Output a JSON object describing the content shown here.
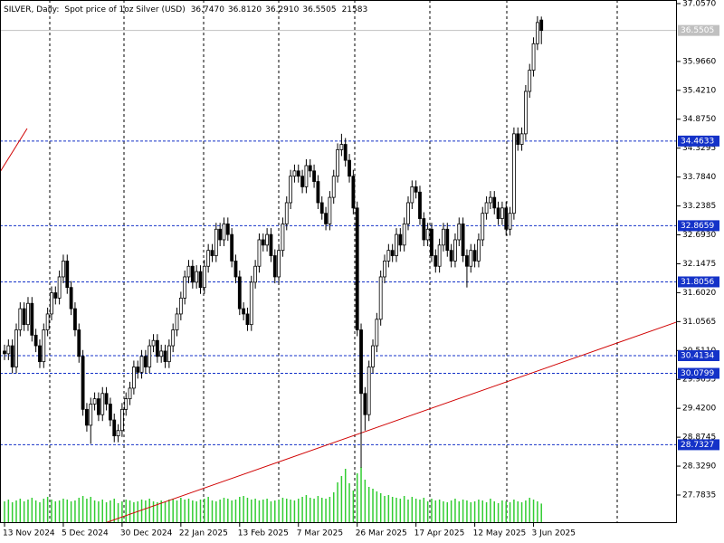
{
  "chart_data": {
    "type": "candlestick",
    "header": {
      "symbol": "SILVER, Daily:",
      "description": "Spot price of 1oz Silver (USD)",
      "ohlc_labels": [
        "36.7470",
        "36.8120",
        "36.2910",
        "36.5505"
      ]
    },
    "categories": [
      "13 Nov 2024",
      null,
      null,
      null,
      null,
      null,
      null,
      null,
      null,
      null,
      null,
      null,
      null,
      null,
      null,
      "5 Dec 2024",
      null,
      null,
      null,
      null,
      null,
      null,
      null,
      null,
      null,
      null,
      null,
      null,
      null,
      null,
      "30 Dec 2024",
      null,
      null,
      null,
      null,
      null,
      null,
      null,
      null,
      null,
      null,
      null,
      null,
      null,
      null,
      "22 Jan 2025",
      null,
      null,
      null,
      null,
      null,
      null,
      null,
      null,
      null,
      null,
      null,
      null,
      null,
      null,
      "13 Feb 2025",
      null,
      null,
      null,
      null,
      null,
      null,
      null,
      null,
      null,
      null,
      null,
      null,
      null,
      null,
      "7 Mar 2025",
      null,
      null,
      null,
      null,
      null,
      null,
      null,
      null,
      null,
      null,
      null,
      null,
      null,
      null,
      "26 Mar 2025",
      null,
      null,
      null,
      null,
      null,
      null,
      null,
      null,
      null,
      null,
      null,
      null,
      null,
      null,
      "17 Apr 2025",
      null,
      null,
      null,
      null,
      null,
      null,
      null,
      null,
      null,
      null,
      null,
      null,
      null,
      null,
      "12 May 2025",
      null,
      null,
      null,
      null,
      null,
      null,
      null,
      null,
      null,
      null,
      null,
      null,
      null,
      null,
      "3 Jun 2025",
      null,
      null
    ],
    "open": [
      30.5,
      30.45,
      30.6,
      30.2,
      30.9,
      31.3,
      31.0,
      31.4,
      30.8,
      30.6,
      30.3,
      30.9,
      31.2,
      31.6,
      31.5,
      31.9,
      32.2,
      31.7,
      31.3,
      30.9,
      30.4,
      29.4,
      29.1,
      29.5,
      29.6,
      29.3,
      29.7,
      29.5,
      29.2,
      28.9,
      29.0,
      29.4,
      29.6,
      29.8,
      30.2,
      30.1,
      30.4,
      30.2,
      30.6,
      30.7,
      30.4,
      30.5,
      30.3,
      30.6,
      30.9,
      31.2,
      31.5,
      31.9,
      32.1,
      31.8,
      32.0,
      31.7,
      32.1,
      32.4,
      32.3,
      32.8,
      32.6,
      32.9,
      32.7,
      32.2,
      31.9,
      31.3,
      31.2,
      31.0,
      31.8,
      32.1,
      32.6,
      32.5,
      32.7,
      32.3,
      31.9,
      32.4,
      32.9,
      33.3,
      33.8,
      33.9,
      33.8,
      33.6,
      34.0,
      33.9,
      33.7,
      33.3,
      33.1,
      32.9,
      33.4,
      33.8,
      34.3,
      34.4,
      34.1,
      33.8,
      33.2,
      30.9,
      29.7,
      29.3,
      30.2,
      30.6,
      31.1,
      31.9,
      32.2,
      32.4,
      32.3,
      32.7,
      32.5,
      32.9,
      33.3,
      33.6,
      33.5,
      33.0,
      32.6,
      32.8,
      32.3,
      32.1,
      32.5,
      32.8,
      32.4,
      32.2,
      32.6,
      32.9,
      32.3,
      32.1,
      32.4,
      32.2,
      32.6,
      33.1,
      33.3,
      33.4,
      33.2,
      33.0,
      33.2,
      32.8,
      33.1,
      34.6,
      34.4,
      34.6,
      35.4,
      35.8,
      36.3,
      36.747
    ],
    "high": [
      30.62,
      30.72,
      30.72,
      31.02,
      31.42,
      31.42,
      31.52,
      31.52,
      30.92,
      30.72,
      31.02,
      31.32,
      31.72,
      31.72,
      32.02,
      32.32,
      32.32,
      31.82,
      31.42,
      31.02,
      30.52,
      29.52,
      29.62,
      29.72,
      29.72,
      29.82,
      29.82,
      29.62,
      29.32,
      29.12,
      29.52,
      29.72,
      29.92,
      30.32,
      30.32,
      30.52,
      30.52,
      30.72,
      30.82,
      30.82,
      30.62,
      30.62,
      30.72,
      31.02,
      31.32,
      31.62,
      32.02,
      32.22,
      32.22,
      32.12,
      32.12,
      32.22,
      32.52,
      32.52,
      32.92,
      32.92,
      33.02,
      33.02,
      32.82,
      32.32,
      32.02,
      31.42,
      31.32,
      31.92,
      32.22,
      32.72,
      32.72,
      32.82,
      32.82,
      32.42,
      32.52,
      33.02,
      33.42,
      33.92,
      34.02,
      34.02,
      33.92,
      34.12,
      34.12,
      34.02,
      33.82,
      33.42,
      33.22,
      33.52,
      33.92,
      34.42,
      34.6,
      34.52,
      34.22,
      33.92,
      33.32,
      31.02,
      29.82,
      30.32,
      30.72,
      31.22,
      32.02,
      32.32,
      32.52,
      32.52,
      32.82,
      32.82,
      33.02,
      33.42,
      33.72,
      33.72,
      33.62,
      33.12,
      32.92,
      32.92,
      32.42,
      32.62,
      32.92,
      32.92,
      32.52,
      32.72,
      33.02,
      33.02,
      32.42,
      32.52,
      32.52,
      32.72,
      33.22,
      33.42,
      33.52,
      33.52,
      33.32,
      33.32,
      33.32,
      33.22,
      34.72,
      34.72,
      34.72,
      35.52,
      35.92,
      36.42,
      36.82,
      36.812
    ],
    "low": [
      30.33,
      30.33,
      30.08,
      30.08,
      30.78,
      30.88,
      30.88,
      30.68,
      30.48,
      30.18,
      30.18,
      30.78,
      31.08,
      31.38,
      31.38,
      31.78,
      31.58,
      31.18,
      30.78,
      30.28,
      29.28,
      28.98,
      28.75,
      29.38,
      29.18,
      29.18,
      29.38,
      29.08,
      28.78,
      28.78,
      28.88,
      29.28,
      29.48,
      29.68,
      29.98,
      29.98,
      30.08,
      30.08,
      30.48,
      30.28,
      30.28,
      30.18,
      30.18,
      30.48,
      30.78,
      31.08,
      31.38,
      31.78,
      31.68,
      31.68,
      31.58,
      31.58,
      31.98,
      32.18,
      32.18,
      32.48,
      32.48,
      32.58,
      32.08,
      31.78,
      31.18,
      31.08,
      30.88,
      30.88,
      31.68,
      31.98,
      32.38,
      32.38,
      32.18,
      31.78,
      31.78,
      32.28,
      32.78,
      33.18,
      33.68,
      33.68,
      33.48,
      33.48,
      33.78,
      33.58,
      33.18,
      32.98,
      32.78,
      32.78,
      33.28,
      33.68,
      34.18,
      33.98,
      33.68,
      33.08,
      30.78,
      28.3,
      29.0,
      29.18,
      30.08,
      30.48,
      30.98,
      31.78,
      32.08,
      32.18,
      32.18,
      32.38,
      32.38,
      32.78,
      33.18,
      33.38,
      32.88,
      32.48,
      32.48,
      32.18,
      31.98,
      31.98,
      32.38,
      32.28,
      32.08,
      32.08,
      32.48,
      32.18,
      31.7,
      31.98,
      32.08,
      32.08,
      32.48,
      32.98,
      33.18,
      33.08,
      32.88,
      32.88,
      32.68,
      32.68,
      32.98,
      34.28,
      34.28,
      34.48,
      35.28,
      35.68,
      36.18,
      36.291
    ],
    "close": [
      30.45,
      30.6,
      30.2,
      30.9,
      31.3,
      31.0,
      31.4,
      30.8,
      30.6,
      30.3,
      30.9,
      31.2,
      31.6,
      31.5,
      31.9,
      32.2,
      31.7,
      31.3,
      30.9,
      30.4,
      29.4,
      29.1,
      29.5,
      29.6,
      29.3,
      29.7,
      29.5,
      29.2,
      28.9,
      29.0,
      29.4,
      29.6,
      29.8,
      30.2,
      30.1,
      30.4,
      30.2,
      30.6,
      30.7,
      30.4,
      30.5,
      30.3,
      30.6,
      30.9,
      31.2,
      31.5,
      31.9,
      32.1,
      31.8,
      32.0,
      31.7,
      32.1,
      32.4,
      32.3,
      32.8,
      32.6,
      32.9,
      32.7,
      32.2,
      31.9,
      31.3,
      31.2,
      31.0,
      31.8,
      32.1,
      32.6,
      32.5,
      32.7,
      32.3,
      31.9,
      32.4,
      32.9,
      33.3,
      33.8,
      33.9,
      33.8,
      33.6,
      34.0,
      33.9,
      33.7,
      33.3,
      33.1,
      32.9,
      33.4,
      33.8,
      34.3,
      34.4,
      34.1,
      33.8,
      33.2,
      30.9,
      29.7,
      29.3,
      30.2,
      30.6,
      31.1,
      31.9,
      32.2,
      32.4,
      32.3,
      32.7,
      32.5,
      32.9,
      33.3,
      33.6,
      33.5,
      33.0,
      32.6,
      32.8,
      32.3,
      32.1,
      32.5,
      32.8,
      32.4,
      32.2,
      32.6,
      32.9,
      32.3,
      32.1,
      32.4,
      32.2,
      32.6,
      33.1,
      33.3,
      33.4,
      33.2,
      33.0,
      33.2,
      32.8,
      33.1,
      34.6,
      34.4,
      34.6,
      35.4,
      35.8,
      36.3,
      36.7,
      36.5505
    ],
    "volume": [
      24000,
      26000,
      23000,
      25000,
      27000,
      24000,
      26000,
      28000,
      25000,
      23000,
      27000,
      29000,
      26000,
      24000,
      25000,
      27000,
      26000,
      24000,
      25000,
      28000,
      30000,
      27000,
      29000,
      25000,
      24000,
      26000,
      23000,
      25000,
      27000,
      22000,
      24000,
      26000,
      25000,
      23000,
      24000,
      26000,
      25000,
      27000,
      24000,
      23000,
      25000,
      24000,
      26000,
      27000,
      25000,
      28000,
      26000,
      27000,
      25000,
      24000,
      26000,
      27000,
      29000,
      25000,
      24000,
      26000,
      28000,
      27000,
      25000,
      26000,
      29000,
      30000,
      28000,
      26000,
      27000,
      25000,
      26000,
      27000,
      24000,
      25000,
      26000,
      28000,
      27000,
      26000,
      25000,
      27000,
      29000,
      31000,
      28000,
      27000,
      30000,
      28000,
      27000,
      29000,
      34000,
      45000,
      52000,
      60000,
      44000,
      36000,
      55000,
      62000,
      48000,
      40000,
      38000,
      35000,
      33000,
      30000,
      31000,
      29000,
      28000,
      27000,
      30000,
      26000,
      29000,
      27000,
      26000,
      28000,
      24000,
      27000,
      25000,
      26000,
      24000,
      23000,
      25000,
      27000,
      24000,
      26000,
      25000,
      23000,
      24000,
      26000,
      25000,
      23000,
      27000,
      24000,
      22000,
      25000,
      24000,
      23000,
      26000,
      24000,
      23000,
      25000,
      28000,
      26000,
      24000,
      21583
    ],
    "candle_color": "#000000",
    "volume_color": "#32cd32",
    "ylim": [
      27.254,
      37.125
    ],
    "yticks": [
      {
        "value": 37.057,
        "label": "37.0570"
      },
      {
        "value": 35.966,
        "label": "35.9660"
      },
      {
        "value": 35.421,
        "label": "35.4210"
      },
      {
        "value": 34.875,
        "label": "34.8750"
      },
      {
        "value": 34.3295,
        "label": "34.3295"
      },
      {
        "value": 33.784,
        "label": "33.7840"
      },
      33.2385,
      {
        "value": 32.693,
        "label": "32.6930"
      },
      32.1475,
      {
        "value": 31.602,
        "label": "31.6020"
      },
      31.0565,
      {
        "value": 30.511,
        "label": "30.5110"
      },
      29.9655,
      {
        "value": 29.42,
        "label": "29.4200"
      },
      28.8745,
      {
        "value": 28.329,
        "label": "28.3290"
      },
      27.7835
    ],
    "levels": [
      34.4633,
      32.8659,
      31.8056,
      30.4134,
      30.0799,
      28.7327
    ],
    "level_color": "#1432c8",
    "price_line_color": "#c0c0c0",
    "trendlines": [
      {
        "color": "#d00000",
        "from": [
          24.25,
          27.22
        ],
        "to": [
          172,
          31.06
        ]
      },
      {
        "color": "#d00000",
        "from": [
          -1.15,
          33.88
        ],
        "to": [
          5.77,
          34.7
        ]
      }
    ]
  }
}
